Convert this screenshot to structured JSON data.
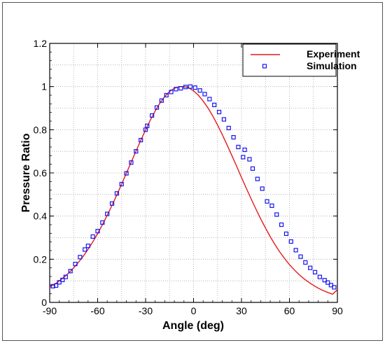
{
  "colors": {
    "experiment": "#e31a1c",
    "simulation": "#1515ee",
    "grid": "#a8a8a8"
  },
  "chart_data": {
    "type": "line",
    "title": "",
    "xlabel": "Angle (deg)",
    "ylabel": "Pressure Ratio",
    "xlim": [
      -90,
      90
    ],
    "ylim": [
      0,
      1.2
    ],
    "xticks": [
      -90,
      -60,
      -30,
      0,
      30,
      60,
      90
    ],
    "yticks": [
      0,
      0.2,
      0.4,
      0.6,
      0.8,
      1,
      1.2
    ],
    "xtick_labels": [
      "-90",
      "-60",
      "-30",
      "0",
      "30",
      "60",
      "90"
    ],
    "ytick_labels": [
      "0",
      "0.2",
      "0.4",
      "0.6",
      "0.8",
      "1",
      "1.2"
    ],
    "grid": true,
    "legend_position": "top-right",
    "series": [
      {
        "name": "Experiment",
        "style": "line",
        "x": [
          -90,
          -87,
          -84,
          -81,
          -78,
          -75,
          -72,
          -69,
          -66,
          -63,
          -60,
          -57,
          -54,
          -51,
          -48,
          -45,
          -42,
          -39,
          -36,
          -33,
          -30,
          -27,
          -24,
          -21,
          -18,
          -15,
          -12,
          -9,
          -6,
          -3,
          0,
          3,
          6,
          9,
          12,
          15,
          18,
          21,
          24,
          27,
          30,
          33,
          36,
          39,
          42,
          45,
          48,
          51,
          54,
          57,
          60,
          63,
          66,
          69,
          72,
          75,
          78,
          81,
          84,
          87,
          90
        ],
        "y": [
          0.071,
          0.084,
          0.099,
          0.117,
          0.137,
          0.16,
          0.186,
          0.214,
          0.246,
          0.281,
          0.319,
          0.36,
          0.404,
          0.45,
          0.498,
          0.548,
          0.599,
          0.65,
          0.701,
          0.751,
          0.799,
          0.845,
          0.887,
          0.924,
          0.954,
          0.977,
          0.992,
          1.0,
          1.0,
          0.994,
          0.98,
          0.96,
          0.933,
          0.901,
          0.864,
          0.822,
          0.777,
          0.729,
          0.68,
          0.63,
          0.579,
          0.529,
          0.48,
          0.433,
          0.387,
          0.345,
          0.304,
          0.267,
          0.233,
          0.203,
          0.175,
          0.151,
          0.129,
          0.11,
          0.094,
          0.079,
          0.066,
          0.055,
          0.046,
          0.038,
          0.059
        ]
      },
      {
        "name": "Simulation",
        "style": "markers",
        "x": [
          -88,
          -86,
          -84,
          -82,
          -80,
          -77,
          -74,
          -71,
          -68,
          -66,
          -63,
          -60,
          -57,
          -54,
          -51,
          -48,
          -45,
          -42,
          -39,
          -36,
          -33,
          -30,
          -29,
          -26,
          -23,
          -20,
          -17,
          -14,
          -11,
          -8,
          -5,
          -2,
          1,
          4,
          7,
          10,
          13,
          16,
          19,
          22,
          25,
          28,
          31,
          32,
          35,
          37,
          40,
          43,
          46,
          49,
          52,
          55,
          58,
          61,
          64,
          67,
          70,
          73,
          76,
          79,
          82,
          84,
          86,
          88
        ],
        "y": [
          0.075,
          0.078,
          0.093,
          0.104,
          0.118,
          0.145,
          0.178,
          0.21,
          0.245,
          0.262,
          0.305,
          0.33,
          0.37,
          0.41,
          0.458,
          0.505,
          0.548,
          0.598,
          0.648,
          0.7,
          0.752,
          0.8,
          0.818,
          0.866,
          0.903,
          0.935,
          0.96,
          0.975,
          0.988,
          0.992,
          0.998,
          1.0,
          0.995,
          0.982,
          0.965,
          0.942,
          0.915,
          0.882,
          0.848,
          0.808,
          0.765,
          0.72,
          0.673,
          0.707,
          0.663,
          0.62,
          0.572,
          0.527,
          0.468,
          0.448,
          0.407,
          0.36,
          0.318,
          0.282,
          0.242,
          0.212,
          0.185,
          0.16,
          0.14,
          0.118,
          0.103,
          0.092,
          0.08,
          0.07
        ]
      }
    ]
  }
}
